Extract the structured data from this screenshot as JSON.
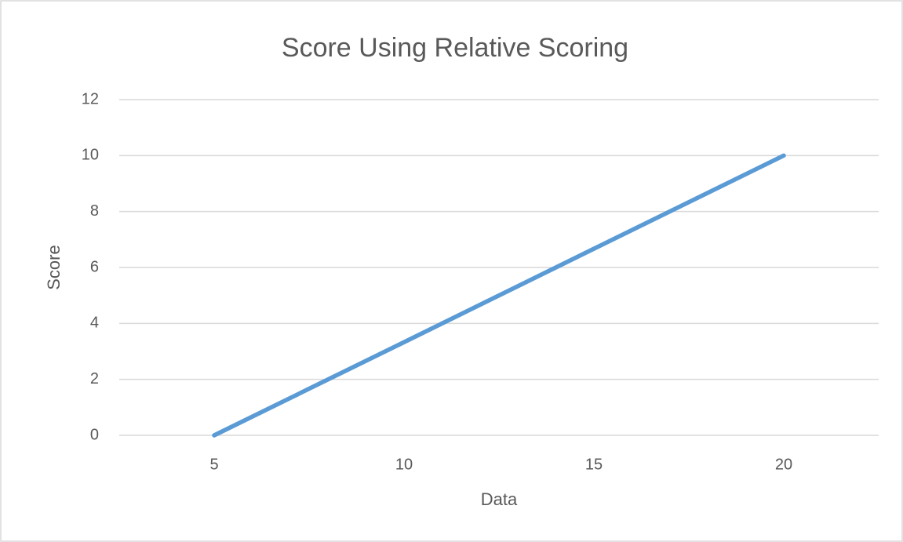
{
  "chart_data": {
    "type": "line",
    "title": "Score Using Relative Scoring",
    "x_label": "Data",
    "y_label": "Score",
    "categories": [
      "5",
      "10",
      "15",
      "20"
    ],
    "series": [
      {
        "name": "Score",
        "color": "#5b9bd5",
        "values": [
          0,
          3.33,
          6.67,
          10
        ]
      }
    ],
    "ylim": [
      0,
      12
    ],
    "yticks": [
      0,
      2,
      4,
      6,
      8,
      10,
      12
    ],
    "grid": true
  }
}
